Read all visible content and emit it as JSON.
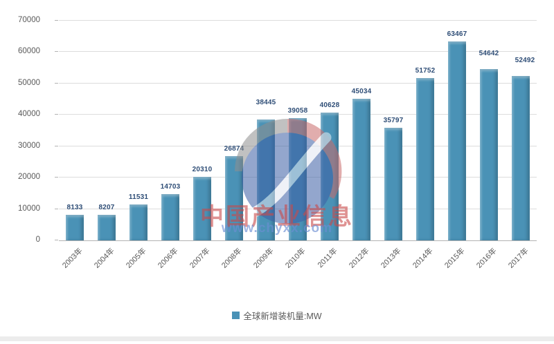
{
  "chart_data": {
    "type": "bar",
    "title": "",
    "xlabel": "",
    "ylabel": "",
    "categories": [
      "2003年",
      "2004年",
      "2005年",
      "2006年",
      "2007年",
      "2008年",
      "2009年",
      "2010年",
      "2011年",
      "2012年",
      "2013年",
      "2014年",
      "2015年",
      "2016年",
      "2017年"
    ],
    "values": [
      8133,
      8207,
      11531,
      14703,
      20310,
      26874,
      38445,
      39058,
      40628,
      45034,
      35797,
      51752,
      63467,
      54642,
      52492
    ],
    "series_name": "全球新增装机量:MW",
    "ylim": [
      0,
      70000
    ],
    "yticks": [
      0,
      10000,
      20000,
      30000,
      40000,
      50000,
      60000,
      70000
    ],
    "grid": true,
    "legend_position": "bottom"
  },
  "legend": {
    "label": "全球新增装机量:MW"
  },
  "watermark": {
    "title": "中国产业信息",
    "url": "www.chyxx.com"
  },
  "colors": {
    "bar": "#4a92b6",
    "value_label": "#2e4d76",
    "axis_text": "#595959",
    "gridline": "#dcdcdc",
    "axis_line": "#b3b3b3",
    "watermark_red": "#ca4a4a",
    "watermark_blue": "#6c8dd3"
  }
}
